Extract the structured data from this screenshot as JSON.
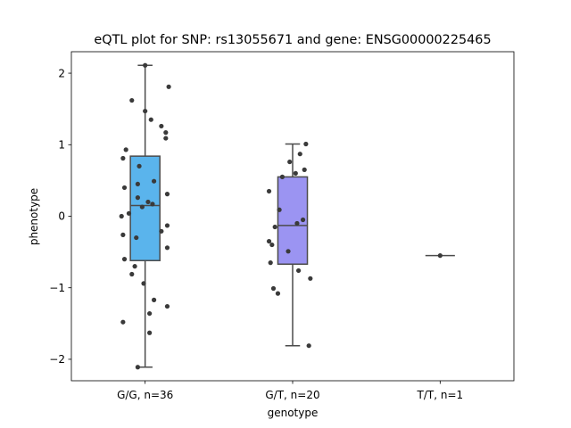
{
  "chart_data": {
    "type": "box",
    "title": "eQTL plot for SNP: rs13055671 and gene: ENSG00000225465",
    "xlabel": "genotype",
    "ylabel": "phenotype",
    "ylim": [
      -2.3,
      2.3
    ],
    "yticks": [
      {
        "value": 2,
        "label": "2"
      },
      {
        "value": 1,
        "label": "1"
      },
      {
        "value": 0,
        "label": "0"
      },
      {
        "value": -1,
        "label": "−1"
      },
      {
        "value": -2,
        "label": "−2"
      }
    ],
    "grid": false,
    "legend": "none",
    "categories": [
      "G/G, n=36",
      "G/T, n=20",
      "T/T, n=1"
    ],
    "groups": [
      {
        "category": "G/G, n=36",
        "color": "#5ab4ec",
        "box": {
          "whisker_low": -2.11,
          "q1": -0.62,
          "median": 0.15,
          "q3": 0.84,
          "whisker_high": 2.11
        },
        "points": [
          2.11,
          1.81,
          1.62,
          1.47,
          1.35,
          1.26,
          1.17,
          1.09,
          0.93,
          0.81,
          0.7,
          0.49,
          0.45,
          0.4,
          0.31,
          0.26,
          0.2,
          0.17,
          0.13,
          0.04,
          0.0,
          -0.13,
          -0.21,
          -0.26,
          -0.3,
          -0.44,
          -0.6,
          -0.7,
          -0.81,
          -0.94,
          -1.17,
          -1.26,
          -1.36,
          -1.48,
          -1.63,
          -2.11
        ],
        "jitter": [
          0.0,
          0.16,
          -0.09,
          0.0,
          0.04,
          0.11,
          0.14,
          0.14,
          -0.13,
          -0.15,
          -0.04,
          0.06,
          -0.05,
          -0.14,
          0.15,
          -0.05,
          0.02,
          0.05,
          -0.02,
          -0.11,
          -0.16,
          0.15,
          0.11,
          -0.15,
          -0.06,
          0.15,
          -0.14,
          -0.07,
          -0.09,
          -0.01,
          0.06,
          0.15,
          0.03,
          -0.15,
          0.03,
          -0.05
        ]
      },
      {
        "category": "G/T, n=20",
        "color": "#9b94f2",
        "box": {
          "whisker_low": -1.81,
          "q1": -0.67,
          "median": -0.13,
          "q3": 0.55,
          "whisker_high": 1.01
        },
        "points": [
          1.01,
          0.87,
          0.76,
          0.65,
          0.6,
          0.55,
          0.35,
          0.09,
          -0.05,
          -0.1,
          -0.15,
          -0.35,
          -0.4,
          -0.49,
          -0.65,
          -0.76,
          -0.87,
          -1.01,
          -1.08,
          -1.81
        ],
        "jitter": [
          0.09,
          0.05,
          -0.02,
          0.08,
          0.02,
          -0.07,
          -0.16,
          -0.09,
          0.07,
          0.03,
          -0.12,
          -0.16,
          -0.14,
          -0.03,
          -0.15,
          0.04,
          0.12,
          -0.13,
          -0.1,
          0.11
        ]
      },
      {
        "category": "T/T, n=1",
        "color": "#5c5c5c",
        "box": {
          "whisker_low": -0.55,
          "q1": -0.55,
          "median": -0.55,
          "q3": -0.55,
          "whisker_high": -0.55
        },
        "points": [
          -0.55
        ],
        "jitter": [
          0.0
        ]
      }
    ]
  }
}
